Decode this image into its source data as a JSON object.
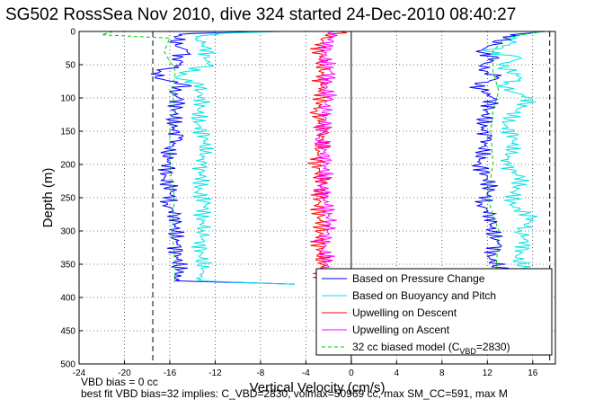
{
  "chart_data": {
    "type": "line",
    "title": "SG502 RossSea Nov 2010, dive 324 started 24-Dec-2010 08:40:27",
    "xlabel": "Vertical Velocity (cm/s)",
    "ylabel": "Depth (m)",
    "xlim": [
      -24,
      18
    ],
    "ylim": [
      0,
      500
    ],
    "y_reversed": true,
    "x_ticks": [
      -24,
      -20,
      -16,
      -12,
      -8,
      -4,
      0,
      4,
      8,
      12,
      16
    ],
    "y_ticks": [
      0,
      50,
      100,
      150,
      200,
      250,
      300,
      350,
      400,
      450,
      500
    ],
    "grid": true,
    "legend_position": "lower-right",
    "reference_lines": {
      "black_solid": 0,
      "black_dashed": [
        -17.5,
        17.5
      ]
    },
    "series": [
      {
        "name": "Based on Pressure Change",
        "color": "#0000ff",
        "segments": [
          {
            "depth": [
              0,
              3,
              6,
              10,
              20,
              30,
              40,
              50,
              60,
              70,
              80,
              90,
              100,
              120,
              140,
              160,
              180,
              200,
              220,
              240,
              260,
              280,
              300,
              320,
              340,
              360,
              375,
              380
            ],
            "velocity": [
              -7,
              -14,
              -15,
              -15.5,
              -15.5,
              -14.5,
              -15.2,
              -15,
              -16.8,
              -17.3,
              -14.5,
              -16,
              -15.2,
              -15.5,
              -15.8,
              -15.2,
              -16.3,
              -16,
              -16.5,
              -15.8,
              -16.2,
              -15.3,
              -15.6,
              -15.4,
              -15.3,
              -15.2,
              -15.5,
              -5
            ]
          },
          {
            "depth": [
              0,
              5,
              10,
              20,
              30,
              40,
              50,
              60,
              70,
              80,
              90,
              100,
              120,
              140,
              160,
              180,
              200,
              220,
              240,
              260,
              280,
              300,
              320,
              340,
              360,
              380
            ],
            "velocity": [
              17,
              14,
              13.5,
              12.5,
              11,
              13,
              11.5,
              12,
              13,
              11,
              11.5,
              12.5,
              12,
              11.5,
              12,
              11.5,
              11.3,
              12,
              12.2,
              11.5,
              12.5,
              12.3,
              13,
              12.2,
              13.3,
              13
            ]
          }
        ]
      },
      {
        "name": "Based on Buoyancy and Pitch",
        "color": "#00e5e5",
        "segments": [
          {
            "depth": [
              0,
              3,
              6,
              10,
              20,
              30,
              40,
              50,
              60,
              70,
              80,
              90,
              100,
              120,
              140,
              160,
              180,
              200,
              220,
              240,
              260,
              280,
              300,
              320,
              340,
              360,
              375,
              380
            ],
            "velocity": [
              -6,
              -12,
              -13,
              -13.5,
              -13,
              -12.5,
              -13,
              -12.5,
              -14.5,
              -15.5,
              -13,
              -13.5,
              -13,
              -13.5,
              -13.5,
              -12.8,
              -13,
              -13.3,
              -13.2,
              -13.5,
              -12.8,
              -13.2,
              -13,
              -13.2,
              -13.3,
              -13,
              -13.5,
              -5
            ]
          },
          {
            "depth": [
              0,
              5,
              10,
              20,
              30,
              40,
              50,
              60,
              70,
              80,
              90,
              100,
              120,
              140,
              160,
              180,
              200,
              220,
              240,
              260,
              280,
              300,
              320,
              340,
              360,
              380
            ],
            "velocity": [
              17,
              15,
              14.5,
              14,
              12,
              15,
              13,
              14,
              15,
              13.5,
              14,
              16,
              14.5,
              13.5,
              14.5,
              14,
              13.5,
              15,
              14.5,
              14,
              16,
              15,
              15.5,
              14.5,
              15.5,
              15
            ]
          }
        ]
      },
      {
        "name": "Upwelling on Descent",
        "color": "#ff0000",
        "segments": [
          {
            "depth": [
              0,
              10,
              30,
              50,
              80,
              100,
              120,
              150,
              180,
              200,
              230,
              260,
              290,
              320,
              350,
              380
            ],
            "velocity": [
              -1,
              -2.5,
              -2.8,
              -2.5,
              -2.7,
              -2.6,
              -3,
              -2.5,
              -2.8,
              -3,
              -2.6,
              -2.9,
              -2.7,
              -2.8,
              -2.6,
              -2.5
            ]
          }
        ]
      },
      {
        "name": "Upwelling on Ascent",
        "color": "#ff00ff",
        "segments": [
          {
            "depth": [
              0,
              20,
              40,
              60,
              80,
              100,
              120,
              140,
              160,
              180,
              200,
              230,
              260,
              290,
              320,
              350,
              380
            ],
            "velocity": [
              -1.5,
              -2,
              -2.5,
              -1.8,
              -2.3,
              -2,
              -2.5,
              -2.2,
              -2.8,
              -2.4,
              -2.2,
              -2.6,
              -2.3,
              -1.8,
              -2.5,
              -2.2,
              -2
            ]
          }
        ]
      },
      {
        "name": "32 cc biased model (CVBD=2830)",
        "color": "#00cc00",
        "dashed": true,
        "segments": [
          {
            "depth": [
              0,
              5,
              10,
              30,
              60,
              90,
              120,
              150,
              200,
              250,
              300,
              350,
              380
            ],
            "velocity": [
              -21,
              -22,
              -16,
              -16.5,
              -15.5,
              -15.8,
              -15.5,
              -16,
              -16,
              -15.6,
              -15.8,
              -15.5,
              -15.6
            ]
          },
          {
            "depth": [
              0,
              5,
              10,
              30,
              60,
              90,
              120,
              150,
              200,
              250,
              300,
              350,
              380
            ],
            "velocity": [
              17,
              15,
              13.5,
              12.5,
              12.5,
              13,
              12.5,
              12.3,
              12.5,
              12,
              13,
              12.8,
              13
            ]
          }
        ]
      }
    ],
    "legend_html_label": "32 cc biased model (C<tspan>VBD</tspan>=2830)"
  },
  "notes": [
    "VBD bias = 0 cc",
    "best fit VBD bias=32 implies: C_VBD=2830, volmax=50969 cc, max SM_CC=591, max M"
  ]
}
